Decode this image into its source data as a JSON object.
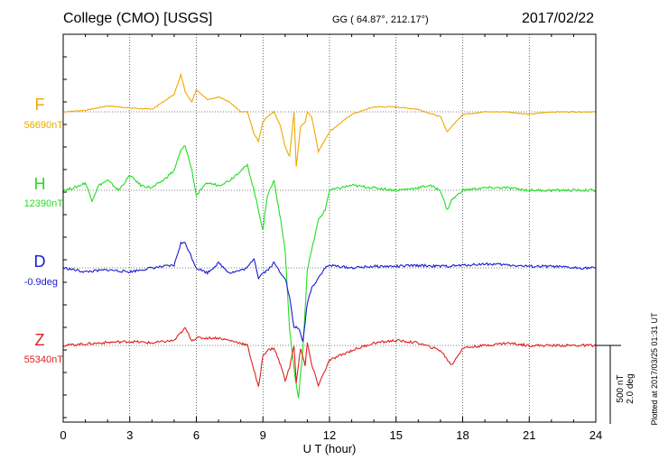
{
  "header": {
    "title": "College (CMO)  [USGS]",
    "coords": "GG ( 64.87°, 212.17°)",
    "date": "2017/02/22"
  },
  "plotted_note": "Plotted at 2017/03/25 01:31  UT",
  "scale": {
    "line1": "500 nT",
    "line2": "2.0 deg"
  },
  "components": [
    {
      "label": "F",
      "value": "56690nT",
      "color": "#f0a800"
    },
    {
      "label": "H",
      "value": "12390nT",
      "color": "#22dd22"
    },
    {
      "label": "D",
      "value": "-0.9deg",
      "color": "#1a1ad0"
    },
    {
      "label": "Z",
      "value": "55340nT",
      "color": "#e02020"
    }
  ],
  "chart_data": {
    "type": "line",
    "xlabel": "U T (hour)",
    "xlim": [
      0,
      24
    ],
    "xticks": [
      "0",
      "3",
      "6",
      "9",
      "12",
      "15",
      "18",
      "21",
      "24"
    ],
    "units": "offset from component baseline, scale bar 500 nT",
    "series": [
      {
        "name": "F",
        "color": "#f0a800",
        "x": [
          0,
          1,
          2,
          3,
          4,
          5,
          5.3,
          5.5,
          5.8,
          6,
          6.5,
          7,
          7.5,
          8,
          8.3,
          8.6,
          8.8,
          9,
          9.2,
          9.5,
          9.8,
          10,
          10.2,
          10.4,
          10.5,
          10.7,
          10.9,
          11,
          11.2,
          11.5,
          12,
          13,
          14,
          15,
          16,
          17,
          17.3,
          17.5,
          18,
          19,
          20,
          21,
          22,
          23,
          24
        ],
        "y": [
          0,
          3,
          12,
          8,
          5,
          35,
          75,
          40,
          20,
          45,
          25,
          30,
          20,
          0,
          0,
          -45,
          -60,
          -20,
          -10,
          0,
          -30,
          -70,
          -90,
          0,
          -110,
          -30,
          -20,
          0,
          -10,
          -80,
          -40,
          -5,
          10,
          10,
          5,
          -10,
          -40,
          -30,
          -5,
          0,
          0,
          -5,
          0,
          0,
          0
        ]
      },
      {
        "name": "H",
        "color": "#22dd22",
        "x": [
          0,
          0.5,
          1,
          1.3,
          1.6,
          2,
          2.5,
          3,
          3.5,
          4,
          4.5,
          5,
          5.3,
          5.5,
          5.8,
          6,
          6.5,
          7,
          7.5,
          8,
          8.3,
          8.6,
          8.8,
          9,
          9.2,
          9.5,
          9.8,
          10,
          10.2,
          10.4,
          10.6,
          10.8,
          11,
          11.2,
          11.5,
          11.8,
          12,
          13,
          14,
          15,
          16,
          16.5,
          17,
          17.3,
          17.5,
          18,
          19,
          20,
          21,
          22,
          23,
          24
        ],
        "y": [
          0,
          5,
          15,
          -20,
          10,
          20,
          0,
          30,
          10,
          5,
          20,
          40,
          80,
          90,
          40,
          -10,
          15,
          10,
          20,
          40,
          50,
          0,
          -40,
          -80,
          -10,
          20,
          -60,
          -120,
          -280,
          -360,
          -420,
          -320,
          -160,
          -120,
          -60,
          -40,
          0,
          10,
          5,
          0,
          5,
          10,
          0,
          -40,
          -20,
          0,
          5,
          5,
          0,
          0,
          0,
          0
        ]
      },
      {
        "name": "D",
        "color": "#1a1ad0",
        "x": [
          0,
          1,
          2,
          3,
          4,
          5,
          5.3,
          5.5,
          5.8,
          6,
          6.5,
          7,
          7.5,
          8,
          8.3,
          8.6,
          8.8,
          9,
          9.2,
          9.5,
          9.8,
          10,
          10.2,
          10.4,
          10.6,
          10.8,
          11,
          11.2,
          11.5,
          11.8,
          12,
          13,
          14,
          15,
          16,
          17,
          18,
          19,
          20,
          21,
          22,
          23,
          24
        ],
        "y": [
          0,
          -8,
          -4,
          -8,
          0,
          5,
          50,
          50,
          20,
          0,
          -10,
          10,
          -10,
          -5,
          0,
          20,
          -20,
          -10,
          -5,
          10,
          -10,
          -20,
          -60,
          -120,
          -120,
          -150,
          -70,
          -40,
          -20,
          0,
          5,
          0,
          3,
          3,
          5,
          3,
          5,
          8,
          6,
          3,
          3,
          0,
          0
        ]
      },
      {
        "name": "Z",
        "color": "#e02020",
        "x": [
          0,
          1,
          2,
          3,
          4,
          5,
          5.3,
          5.5,
          5.8,
          6,
          7,
          8,
          8.3,
          8.6,
          8.8,
          9,
          9.2,
          9.5,
          9.8,
          10,
          10.2,
          10.4,
          10.5,
          10.7,
          10.9,
          11,
          11.2,
          11.5,
          12,
          13,
          14,
          15,
          16,
          17,
          17.5,
          18,
          19,
          20,
          21,
          22,
          23,
          24
        ],
        "y": [
          0,
          3,
          6,
          8,
          5,
          10,
          25,
          35,
          10,
          15,
          15,
          5,
          0,
          -50,
          -85,
          -20,
          -10,
          -5,
          -40,
          -70,
          -45,
          0,
          -75,
          -5,
          -40,
          5,
          -40,
          -80,
          -30,
          -10,
          5,
          10,
          5,
          -10,
          -40,
          -5,
          0,
          5,
          0,
          0,
          0,
          0
        ]
      }
    ]
  }
}
